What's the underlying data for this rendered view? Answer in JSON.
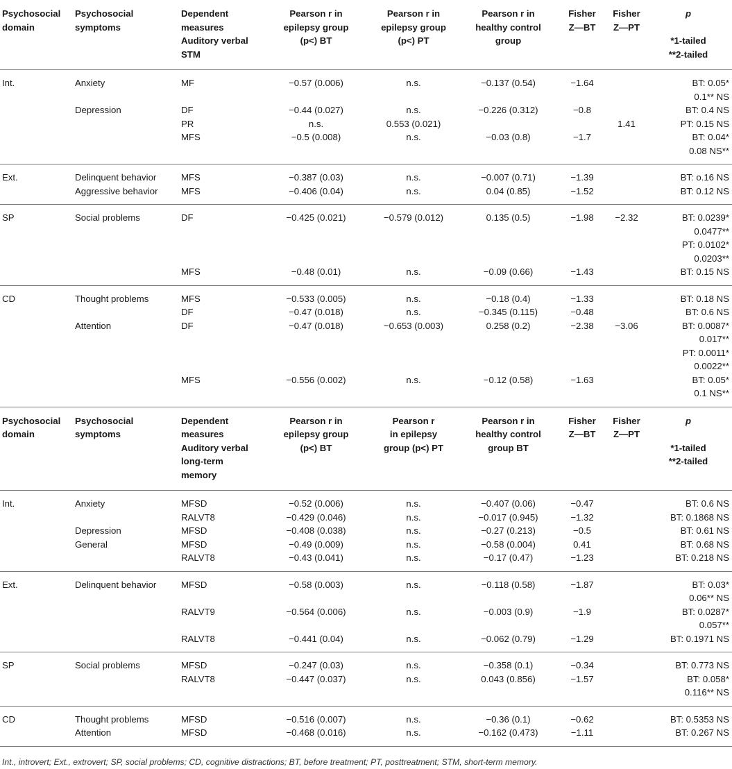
{
  "header1": {
    "domain": [
      "Psychosocial",
      "domain"
    ],
    "symptoms": [
      "Psychosocial",
      "symptoms"
    ],
    "dependent": [
      "Dependent",
      "measures",
      "Auditory verbal",
      "STM"
    ],
    "pearson_bt": [
      "Pearson r in",
      "epilepsy group",
      "(p<) BT"
    ],
    "pearson_pt": [
      "Pearson r in",
      "epilepsy group",
      "(p<) PT"
    ],
    "pearson_hc": [
      "Pearson r in",
      "healthy control",
      "group"
    ],
    "fisher_bt": [
      "Fisher",
      "Z—BT"
    ],
    "fisher_pt": [
      "Fisher",
      "Z—PT"
    ],
    "p": [
      "p",
      "",
      "*1-tailed",
      "**2-tailed"
    ]
  },
  "section1": [
    {
      "rows": [
        {
          "domain": "Int.",
          "symptom": "Anxiety",
          "dep": "MF",
          "bt": "−0.57 (0.006)",
          "pt": "n.s.",
          "hc": "−0.137 (0.54)",
          "fbt": "−1.64",
          "fpt": "",
          "p": [
            "BT: 0.05*",
            "0.1** NS"
          ]
        },
        {
          "domain": "",
          "symptom": "Depression",
          "dep": "DF",
          "bt": "−0.44 (0.027)",
          "pt": "n.s.",
          "hc": "−0.226 (0.312)",
          "fbt": "−0.8",
          "fpt": "",
          "p": [
            "BT: 0.4 NS"
          ]
        },
        {
          "domain": "",
          "symptom": "",
          "dep": "PR",
          "bt": "n.s.",
          "pt": "0.553 (0.021)",
          "hc": "",
          "fbt": "",
          "fpt": "1.41",
          "p": [
            "PT: 0.15 NS"
          ]
        },
        {
          "domain": "",
          "symptom": "",
          "dep": "MFS",
          "bt": "−0.5 (0.008)",
          "pt": "n.s.",
          "hc": "−0.03 (0.8)",
          "fbt": "−1.7",
          "fpt": "",
          "p": [
            "BT: 0.04*",
            "0.08 NS**"
          ]
        }
      ]
    },
    {
      "rows": [
        {
          "domain": "Ext.",
          "symptom": "Delinquent behavior",
          "dep": "MFS",
          "bt": "−0.387 (0.03)",
          "pt": "n.s.",
          "hc": "−0.007 (0.71)",
          "fbt": "−1.39",
          "fpt": "",
          "p": [
            "BT: o.16 NS"
          ]
        },
        {
          "domain": "",
          "symptom": "Aggressive behavior",
          "dep": "MFS",
          "bt": "−0.406 (0.04)",
          "pt": "n.s.",
          "hc": "0.04 (0.85)",
          "fbt": "−1.52",
          "fpt": "",
          "p": [
            "BT: 0.12 NS"
          ]
        }
      ]
    },
    {
      "rows": [
        {
          "domain": "SP",
          "symptom": "Social problems",
          "dep": "DF",
          "bt": "−0.425 (0.021)",
          "pt": "−0.579 (0.012)",
          "hc": "0.135 (0.5)",
          "fbt": "−1.98",
          "fpt": "−2.32",
          "p": [
            "BT: 0.0239*",
            "0.0477**",
            "PT: 0.0102*",
            "0.0203**"
          ]
        },
        {
          "domain": "",
          "symptom": "",
          "dep": "MFS",
          "bt": "−0.48 (0.01)",
          "pt": "n.s.",
          "hc": "−0.09 (0.66)",
          "fbt": "−1.43",
          "fpt": "",
          "p": [
            "BT: 0.15 NS"
          ]
        }
      ]
    },
    {
      "rows": [
        {
          "domain": "CD",
          "symptom": "Thought problems",
          "dep": "MFS",
          "bt": "−0.533 (0.005)",
          "pt": "n.s.",
          "hc": "−0.18 (0.4)",
          "fbt": "−1.33",
          "fpt": "",
          "p": [
            "BT: 0.18 NS"
          ]
        },
        {
          "domain": "",
          "symptom": "",
          "dep": "DF",
          "bt": "−0.47 (0.018)",
          "pt": "n.s.",
          "hc": "−0.345 (0.115)",
          "fbt": "−0.48",
          "fpt": "",
          "p": [
            "BT: 0.6 NS"
          ]
        },
        {
          "domain": "",
          "symptom": "Attention",
          "dep": "DF",
          "bt": "−0.47 (0.018)",
          "pt": "−0.653 (0.003)",
          "hc": "0.258 (0.2)",
          "fbt": "−2.38",
          "fpt": "−3.06",
          "p": [
            "BT: 0.0087*",
            "0.017**",
            "PT: 0.0011*",
            "0.0022**"
          ]
        },
        {
          "domain": "",
          "symptom": "",
          "dep": "MFS",
          "bt": "−0.556 (0.002)",
          "pt": "n.s.",
          "hc": "−0.12 (0.58)",
          "fbt": "−1.63",
          "fpt": "",
          "p": [
            "BT: 0.05*",
            "0.1 NS**"
          ]
        }
      ]
    }
  ],
  "header2": {
    "domain": [
      "Psychosocial",
      "domain"
    ],
    "symptoms": [
      "Psychosocial",
      "symptoms"
    ],
    "dependent": [
      "Dependent",
      "measures",
      "Auditory verbal",
      "long-term",
      "memory"
    ],
    "pearson_bt": [
      "Pearson r in",
      "epilepsy group",
      "(p<) BT"
    ],
    "pearson_pt": [
      "Pearson r",
      "in epilepsy",
      "group (p<) PT"
    ],
    "pearson_hc": [
      "Pearson r in",
      "healthy control",
      "group BT"
    ],
    "fisher_bt": [
      "Fisher",
      "Z—BT"
    ],
    "fisher_pt": [
      "Fisher",
      "Z—PT"
    ],
    "p": [
      "p",
      "",
      "*1-tailed",
      "**2-tailed"
    ]
  },
  "section2": [
    {
      "rows": [
        {
          "domain": "Int.",
          "symptom": "Anxiety",
          "dep": "MFSD",
          "bt": "−0.52 (0.006)",
          "pt": "n.s.",
          "hc": "−0.407 (0.06)",
          "fbt": "−0.47",
          "fpt": "",
          "p": [
            "BT: 0.6 NS"
          ]
        },
        {
          "domain": "",
          "symptom": "",
          "dep": "RALVT8",
          "bt": "−0.429 (0.046)",
          "pt": "n.s.",
          "hc": "−0.017 (0.945)",
          "fbt": "−1.32",
          "fpt": "",
          "p": [
            "BT: 0.1868 NS"
          ]
        },
        {
          "domain": "",
          "symptom": "Depression",
          "dep": "MFSD",
          "bt": "−0.408 (0.038)",
          "pt": "n.s.",
          "hc": "−0.27 (0.213)",
          "fbt": "−0.5",
          "fpt": "",
          "p": [
            "BT: 0.61 NS"
          ]
        },
        {
          "domain": "",
          "symptom": "General",
          "dep": "MFSD",
          "bt": "−0.49 (0.009)",
          "pt": "n.s.",
          "hc": "−0.58 (0.004)",
          "fbt": "0.41",
          "fpt": "",
          "p": [
            "BT: 0.68 NS"
          ]
        },
        {
          "domain": "",
          "symptom": "",
          "dep": "RALVT8",
          "bt": "−0.43 (0.041)",
          "pt": "n.s.",
          "hc": "−0.17 (0.47)",
          "fbt": "−1.23",
          "fpt": "",
          "p": [
            "BT: 0.218 NS"
          ]
        }
      ]
    },
    {
      "rows": [
        {
          "domain": "Ext.",
          "symptom": "Delinquent behavior",
          "dep": "MFSD",
          "bt": "−0.58 (0.003)",
          "pt": "n.s.",
          "hc": "−0.118 (0.58)",
          "fbt": "−1.87",
          "fpt": "",
          "p": [
            "BT: 0.03*",
            "0.06** NS"
          ]
        },
        {
          "domain": "",
          "symptom": "",
          "dep": "RALVT9",
          "bt": "−0.564 (0.006)",
          "pt": "n.s.",
          "hc": "−0.003 (0.9)",
          "fbt": "−1.9",
          "fpt": "",
          "p": [
            "BT: 0.0287*",
            "0.057**"
          ]
        },
        {
          "domain": "",
          "symptom": "",
          "dep": "RALVT8",
          "bt": "−0.441 (0.04)",
          "pt": "n.s.",
          "hc": "−0.062 (0.79)",
          "fbt": "−1.29",
          "fpt": "",
          "p": [
            "BT: 0.1971 NS"
          ]
        }
      ]
    },
    {
      "rows": [
        {
          "domain": "SP",
          "symptom": "Social problems",
          "dep": "MFSD",
          "bt": "−0.247 (0.03)",
          "pt": "n.s.",
          "hc": "−0.358 (0.1)",
          "fbt": "−0.34",
          "fpt": "",
          "p": [
            "BT: 0.773 NS"
          ]
        },
        {
          "domain": "",
          "symptom": "",
          "dep": "RALVT8",
          "bt": "−0.447 (0.037)",
          "pt": "n.s.",
          "hc": "0.043 (0.856)",
          "fbt": "−1.57",
          "fpt": "",
          "p": [
            "BT: 0.058*",
            "0.116** NS"
          ]
        }
      ]
    },
    {
      "rows": [
        {
          "domain": "CD",
          "symptom": "Thought problems",
          "dep": "MFSD",
          "bt": "−0.516 (0.007)",
          "pt": "n.s.",
          "hc": "−0.36 (0.1)",
          "fbt": "−0.62",
          "fpt": "",
          "p": [
            "BT: 0.5353 NS"
          ]
        },
        {
          "domain": "",
          "symptom": "Attention",
          "dep": "MFSD",
          "bt": "−0.468 (0.016)",
          "pt": "n.s.",
          "hc": "−0.162 (0.473)",
          "fbt": "−1.11",
          "fpt": "",
          "p": [
            "BT: 0.267 NS"
          ]
        }
      ]
    }
  ],
  "footnote": "Int., introvert; Ext., extrovert; SP, social problems; CD, cognitive distractions; BT, before treatment; PT, posttreatment; STM, short-term memory."
}
